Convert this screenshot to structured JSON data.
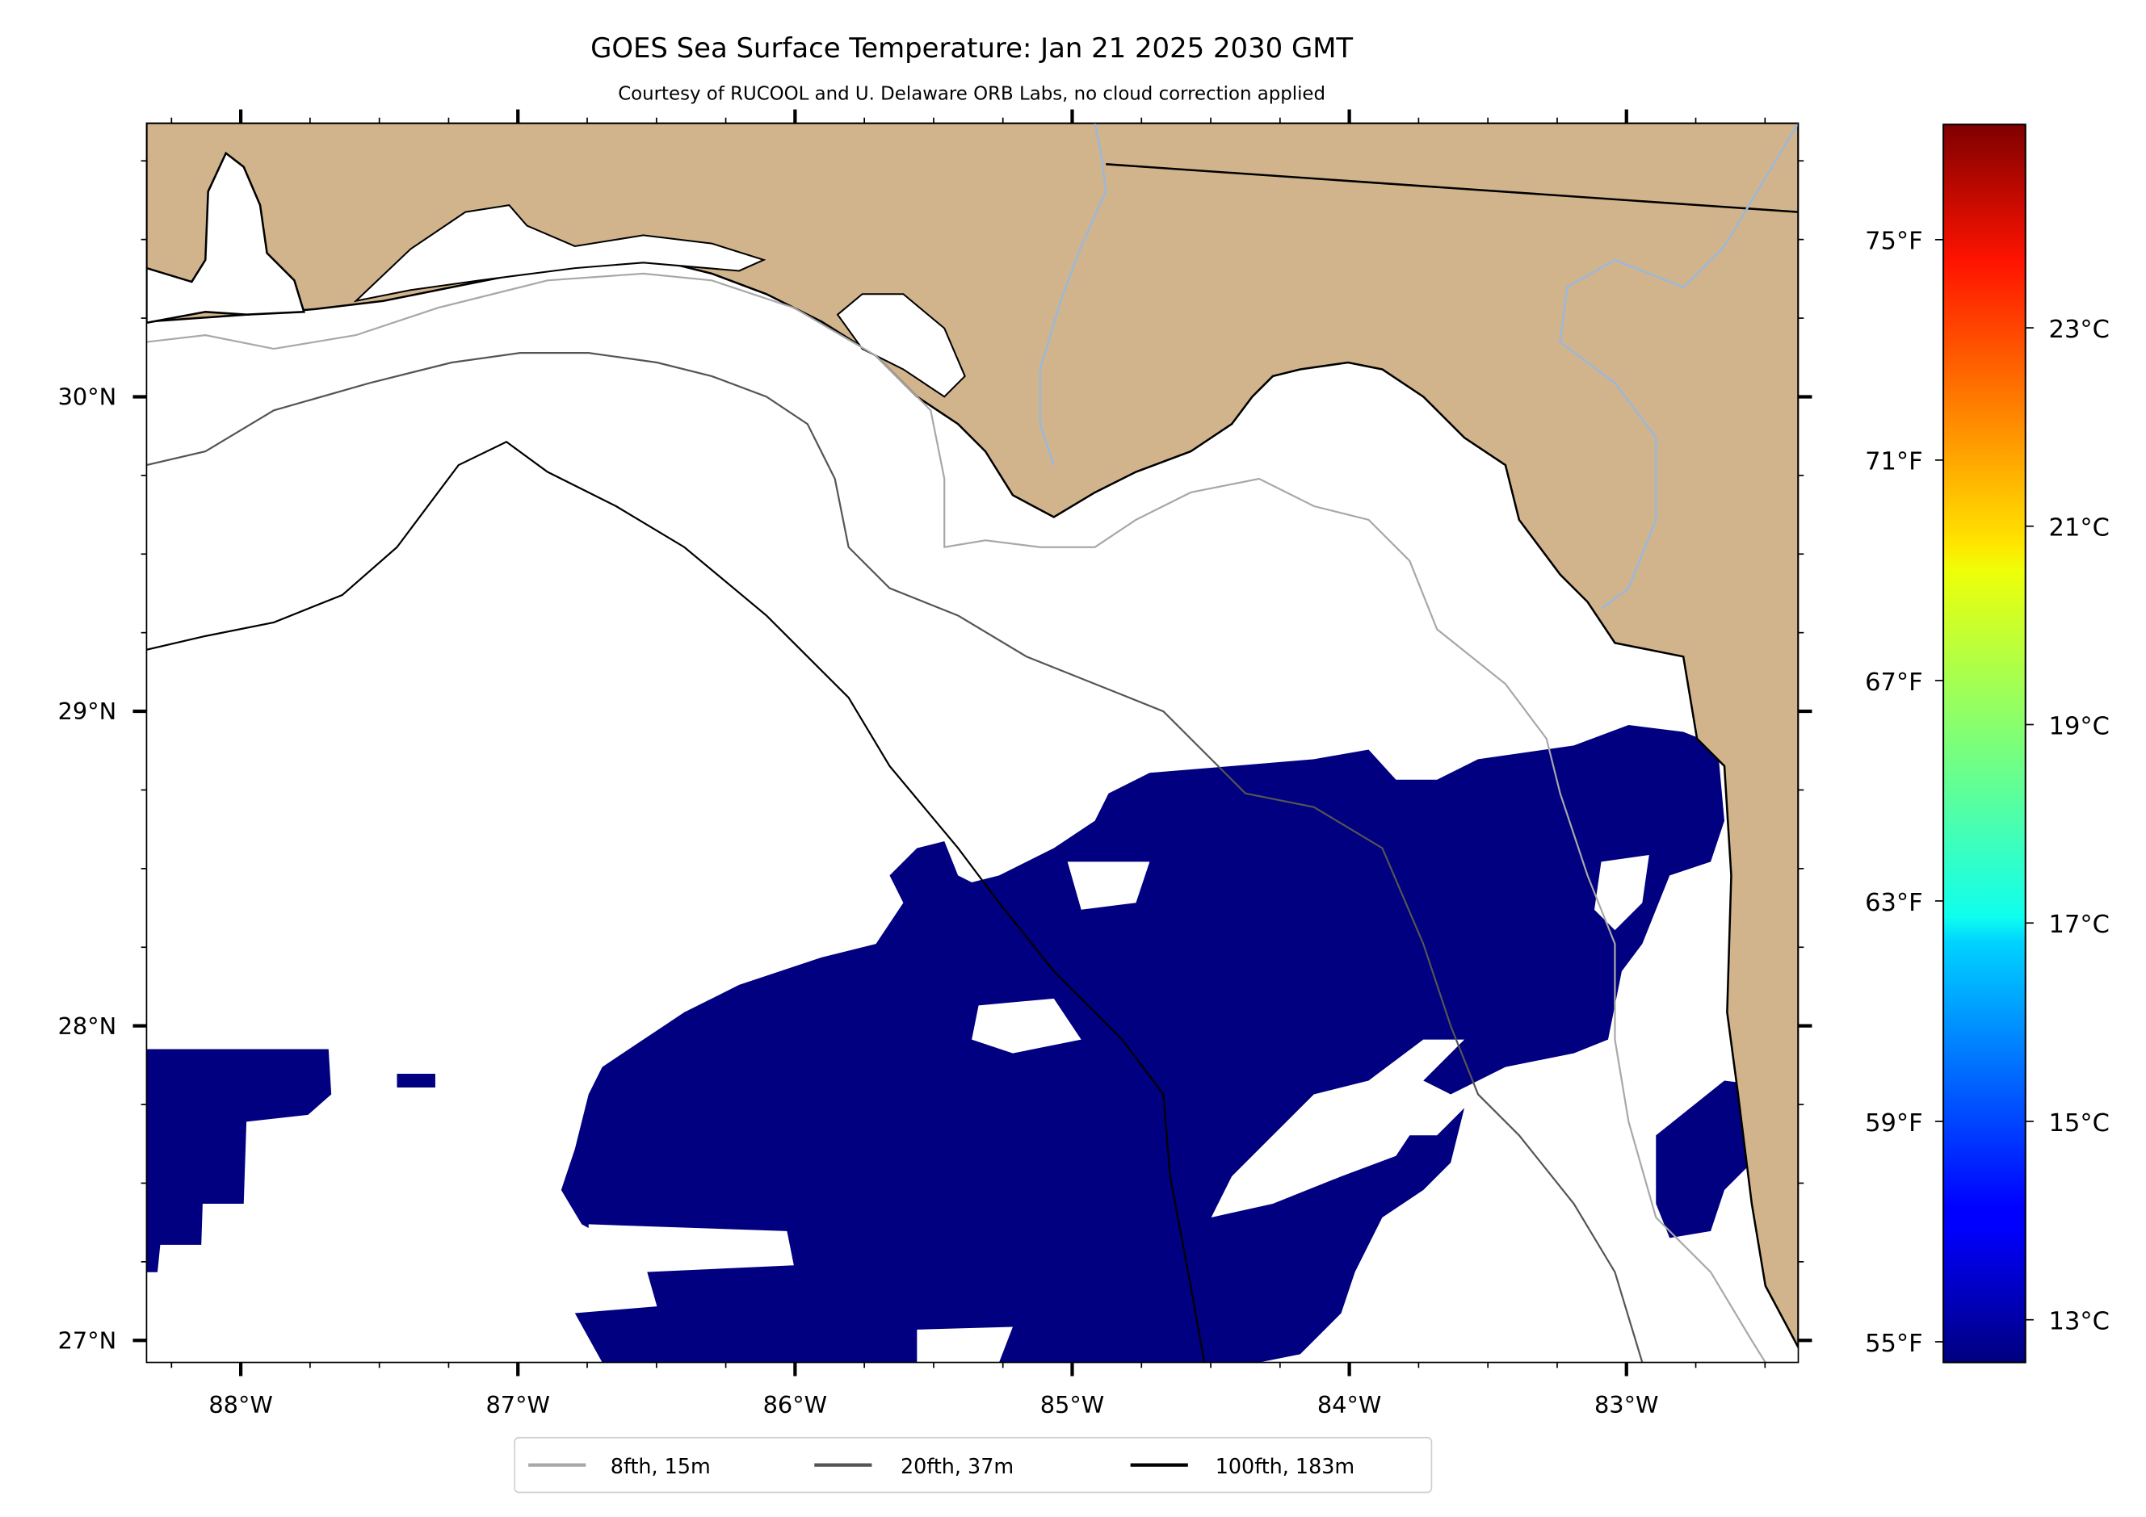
{
  "title": "GOES Sea Surface Temperature: Jan 21 2025 2030 GMT",
  "subtitle": "Courtesy of RUCOOL and U. Delaware ORB Labs, no cloud correction applied",
  "colors": {
    "land": "#d2b48c",
    "sst_value": "#000080",
    "contour_8fth": "#a8a8a8",
    "contour_20fth": "#555555",
    "contour_100fth": "#000000",
    "river": "#9cb8d8"
  },
  "legend": [
    {
      "label": "8fth, 15m",
      "color": "#a8a8a8"
    },
    {
      "label": "20fth, 37m",
      "color": "#555555"
    },
    {
      "label": "100fth, 183m",
      "color": "#000000"
    }
  ],
  "chart_data": {
    "type": "heatmap",
    "title": "GOES Sea Surface Temperature: Jan 21 2025 2030 GMT",
    "extent": {
      "lon": [
        -88.34,
        -82.38
      ],
      "lat": [
        26.93,
        30.87
      ]
    },
    "lon_ticks": [
      {
        "value": -88,
        "label": "88°W"
      },
      {
        "value": -87,
        "label": "87°W"
      },
      {
        "value": -86,
        "label": "86°W"
      },
      {
        "value": -85,
        "label": "85°W"
      },
      {
        "value": -84,
        "label": "84°W"
      },
      {
        "value": -83,
        "label": "83°W"
      }
    ],
    "lat_ticks": [
      {
        "value": 30,
        "label": "30°N"
      },
      {
        "value": 29,
        "label": "29°N"
      },
      {
        "value": 28,
        "label": "28°N"
      },
      {
        "value": 27,
        "label": "27°N"
      }
    ],
    "colorbar": {
      "colormap": "jet",
      "range_c": [
        12.57,
        25.05
      ],
      "celsius_ticks": [
        {
          "value": 13,
          "label": "13°C"
        },
        {
          "value": 15,
          "label": "15°C"
        },
        {
          "value": 17,
          "label": "17°C"
        },
        {
          "value": 19,
          "label": "19°C"
        },
        {
          "value": 21,
          "label": "21°C"
        },
        {
          "value": 23,
          "label": "23°C"
        }
      ],
      "fahrenheit_ticks": [
        {
          "value": 55,
          "label": "55°F"
        },
        {
          "value": 59,
          "label": "59°F"
        },
        {
          "value": 63,
          "label": "63°F"
        },
        {
          "value": 67,
          "label": "67°F"
        },
        {
          "value": 71,
          "label": "71°F"
        },
        {
          "value": 75,
          "label": "75°F"
        }
      ]
    },
    "observed_sst_c": "~12.6 (minimum of scale) in cloud-free ocean patches"
  }
}
